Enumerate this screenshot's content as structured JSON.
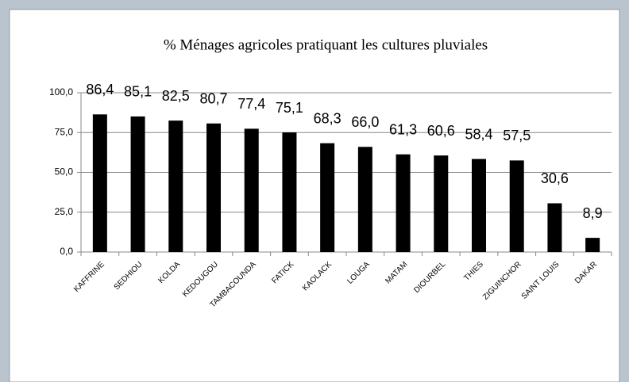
{
  "chart_data": {
    "type": "bar",
    "title": "% Ménages agricoles pratiquant les cultures pluviales",
    "categories": [
      "KAFFRINE",
      "SEDHIOU",
      "KOLDA",
      "KEDOUGOU",
      "TAMBACOUNDA",
      "FATICK",
      "KAOLACK",
      "LOUGA",
      "MATAM",
      "DIOURBEL",
      "THIES",
      "ZIGUINCHOR",
      "SAINT LOUIS",
      "DAKAR"
    ],
    "values": [
      86.4,
      85.1,
      82.5,
      80.7,
      77.4,
      75.1,
      68.3,
      66.0,
      61.3,
      60.6,
      58.4,
      57.5,
      30.6,
      8.9
    ],
    "value_labels": [
      "86,4",
      "85,1",
      "82,5",
      "80,7",
      "77,4",
      "75,1",
      "68,3",
      "66,0",
      "61,3",
      "60,6",
      "58,4",
      "57,5",
      "30,6",
      "8,9"
    ],
    "color": "#000000",
    "ylim": [
      0,
      100
    ],
    "yticks": [
      {
        "value": 0,
        "label": "0,0"
      },
      {
        "value": 25,
        "label": "25,0"
      },
      {
        "value": 50,
        "label": "50,0"
      },
      {
        "value": 75,
        "label": "75,0"
      },
      {
        "value": 100,
        "label": "100,0"
      }
    ],
    "grid": true
  }
}
